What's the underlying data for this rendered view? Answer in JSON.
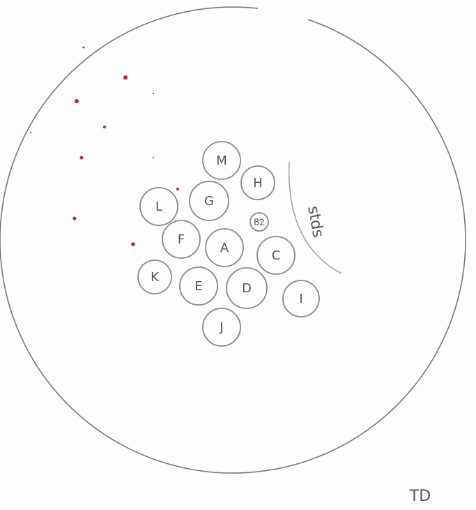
{
  "nodes": [
    {
      "label": "M"
    },
    {
      "label": "H"
    },
    {
      "label": "G"
    },
    {
      "label": "B2"
    },
    {
      "label": "L"
    },
    {
      "label": "F"
    },
    {
      "label": "A"
    },
    {
      "label": "C"
    },
    {
      "label": "K"
    },
    {
      "label": "E"
    },
    {
      "label": "D"
    },
    {
      "label": "I"
    },
    {
      "label": "J"
    }
  ],
  "annotation": "stds",
  "signature": "TD"
}
